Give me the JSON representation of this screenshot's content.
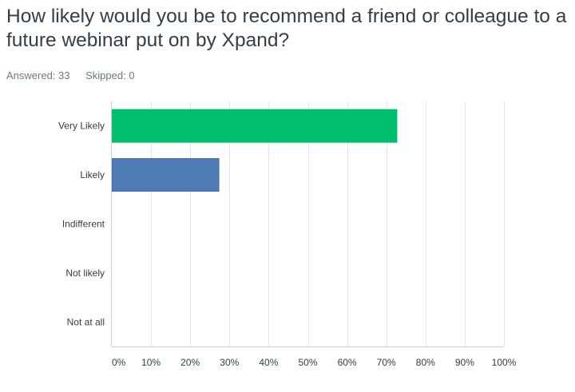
{
  "question": {
    "title": "How likely would you be to recommend a friend or colleague to a future webinar put on by Xpand?"
  },
  "stats": {
    "answered": "Answered: 33",
    "skipped": "Skipped: 0"
  },
  "chart_data": {
    "type": "bar",
    "orientation": "horizontal",
    "categories": [
      "Very Likely",
      "Likely",
      "Indifferent",
      "Not likely",
      "Not at all"
    ],
    "values": [
      72.7,
      27.3,
      0,
      0,
      0
    ],
    "value_unit": "%",
    "bar_colors": [
      "#00bf6f",
      "#507cb6",
      "#f05b24",
      "#0bb4ff",
      "#6b787f"
    ],
    "xlim": [
      0,
      100
    ],
    "xticks": [
      0,
      10,
      20,
      30,
      40,
      50,
      60,
      70,
      80,
      90,
      100
    ],
    "xtick_labels": [
      "0%",
      "10%",
      "20%",
      "30%",
      "40%",
      "50%",
      "60%",
      "70%",
      "80%",
      "90%",
      "100%"
    ],
    "grid": true,
    "legend": "none",
    "title": "",
    "xlabel": "",
    "ylabel": ""
  }
}
